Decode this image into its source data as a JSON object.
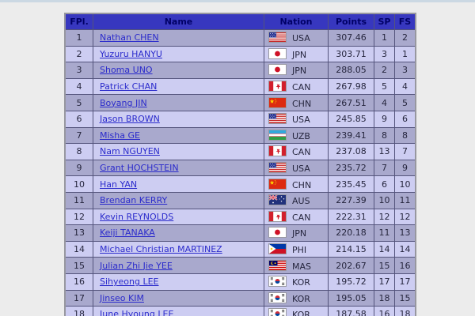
{
  "page": {
    "colors": {
      "page_bg": "#ececec",
      "top_strip": "#cbd8e3",
      "header_bg": "#3737bf",
      "header_text": "#000066",
      "row_odd_bg": "#a9a9cd",
      "row_even_bg": "#cdcdf2",
      "link": "#2b2bcc",
      "cell_text": "#26263e",
      "grid_border": "#54547c",
      "outer_border": "#97979f"
    }
  },
  "table": {
    "columns": [
      {
        "key": "fpl",
        "label": "FPl."
      },
      {
        "key": "name",
        "label": "Name"
      },
      {
        "key": "nation",
        "label": "Nation"
      },
      {
        "key": "points",
        "label": "Points"
      },
      {
        "key": "sp",
        "label": "SP"
      },
      {
        "key": "fs",
        "label": "FS"
      }
    ],
    "rows": [
      {
        "fpl": "1",
        "name": "Nathan CHEN",
        "flag_icon": "usa-flag-icon",
        "nation": "USA",
        "points": "307.46",
        "sp": "1",
        "fs": "2"
      },
      {
        "fpl": "2",
        "name": "Yuzuru HANYU",
        "flag_icon": "jpn-flag-icon",
        "nation": "JPN",
        "points": "303.71",
        "sp": "3",
        "fs": "1"
      },
      {
        "fpl": "3",
        "name": "Shoma UNO",
        "flag_icon": "jpn-flag-icon",
        "nation": "JPN",
        "points": "288.05",
        "sp": "2",
        "fs": "3"
      },
      {
        "fpl": "4",
        "name": "Patrick CHAN",
        "flag_icon": "can-flag-icon",
        "nation": "CAN",
        "points": "267.98",
        "sp": "5",
        "fs": "4"
      },
      {
        "fpl": "5",
        "name": "Boyang JIN",
        "flag_icon": "chn-flag-icon",
        "nation": "CHN",
        "points": "267.51",
        "sp": "4",
        "fs": "5"
      },
      {
        "fpl": "6",
        "name": "Jason BROWN",
        "flag_icon": "usa-flag-icon",
        "nation": "USA",
        "points": "245.85",
        "sp": "9",
        "fs": "6"
      },
      {
        "fpl": "7",
        "name": "Misha GE",
        "flag_icon": "uzb-flag-icon",
        "nation": "UZB",
        "points": "239.41",
        "sp": "8",
        "fs": "8"
      },
      {
        "fpl": "8",
        "name": "Nam NGUYEN",
        "flag_icon": "can-flag-icon",
        "nation": "CAN",
        "points": "237.08",
        "sp": "13",
        "fs": "7"
      },
      {
        "fpl": "9",
        "name": "Grant HOCHSTEIN",
        "flag_icon": "usa-flag-icon",
        "nation": "USA",
        "points": "235.72",
        "sp": "7",
        "fs": "9"
      },
      {
        "fpl": "10",
        "name": "Han YAN",
        "flag_icon": "chn-flag-icon",
        "nation": "CHN",
        "points": "235.45",
        "sp": "6",
        "fs": "10"
      },
      {
        "fpl": "11",
        "name": "Brendan KERRY",
        "flag_icon": "aus-flag-icon",
        "nation": "AUS",
        "points": "227.39",
        "sp": "10",
        "fs": "11"
      },
      {
        "fpl": "12",
        "name": "Kevin REYNOLDS",
        "flag_icon": "can-flag-icon",
        "nation": "CAN",
        "points": "222.31",
        "sp": "12",
        "fs": "12"
      },
      {
        "fpl": "13",
        "name": "Keiji TANAKA",
        "flag_icon": "jpn-flag-icon",
        "nation": "JPN",
        "points": "220.18",
        "sp": "11",
        "fs": "13"
      },
      {
        "fpl": "14",
        "name": "Michael Christian MARTINEZ",
        "flag_icon": "phi-flag-icon",
        "nation": "PHI",
        "points": "214.15",
        "sp": "14",
        "fs": "14"
      },
      {
        "fpl": "15",
        "name": "Julian Zhi Jie YEE",
        "flag_icon": "mas-flag-icon",
        "nation": "MAS",
        "points": "202.67",
        "sp": "15",
        "fs": "16"
      },
      {
        "fpl": "16",
        "name": "Sihyeong LEE",
        "flag_icon": "kor-flag-icon",
        "nation": "KOR",
        "points": "195.72",
        "sp": "17",
        "fs": "17"
      },
      {
        "fpl": "17",
        "name": "Jinseo KIM",
        "flag_icon": "kor-flag-icon",
        "nation": "KOR",
        "points": "195.05",
        "sp": "18",
        "fs": "15"
      },
      {
        "fpl": "18",
        "name": "June Hyoung LEE",
        "flag_icon": "kor-flag-icon",
        "nation": "KOR",
        "points": "187.58",
        "sp": "16",
        "fs": "18"
      }
    ]
  }
}
